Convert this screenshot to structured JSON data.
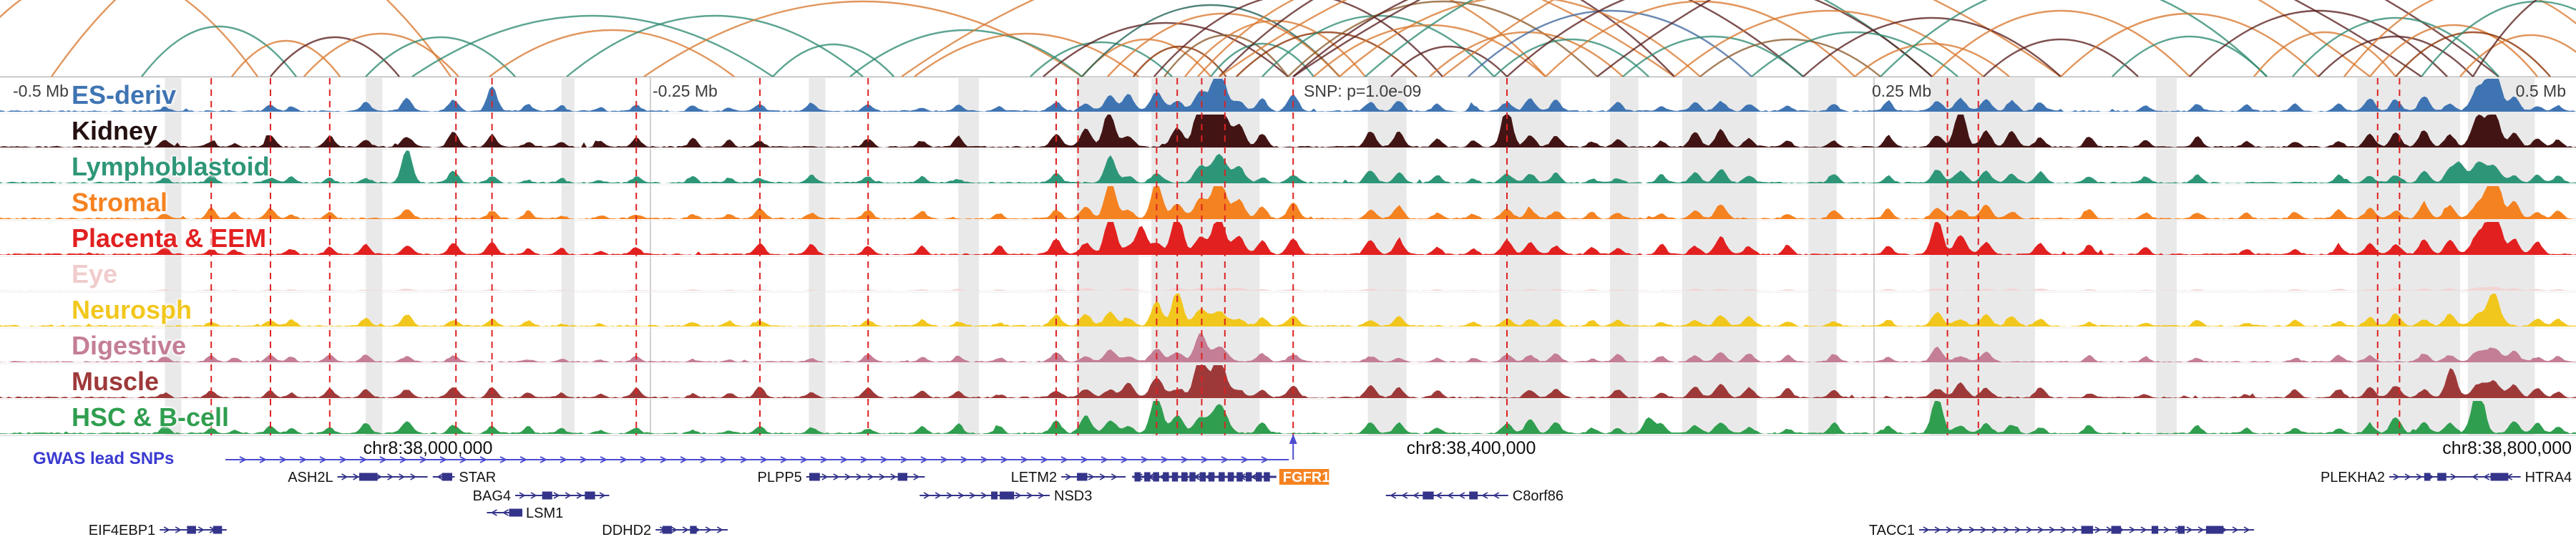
{
  "ruler": {
    "minus_half": "-0.5 Mb",
    "minus_quarter": "-0.25 Mb",
    "snp": "SNP: p=1.0e-09",
    "plus_quarter": "0.25 Mb",
    "plus_half": "0.5 Mb"
  },
  "coordinates": {
    "left": "chr8:38,000,000",
    "center": "chr8:38,400,000",
    "right": "chr8:38,800,000"
  },
  "gwas": {
    "label": "GWAS lead SNPs"
  },
  "chart_data": {
    "type": "area",
    "subtype": "genome-signal-tracks-with-interaction-arcs",
    "region": "chr8:37,900,000-38,900,000",
    "snp_x": 0.502,
    "snp_label": "SNP: p=1.0e-09",
    "gene_color": "#34348a",
    "gene_label_color": "#141414",
    "highlight_gene_bg": "#f58220",
    "gwas_line_color": "#4d4dd0",
    "red_line_color": "#dd2222",
    "tracks": [
      {
        "name": "ES-deriv",
        "color": "#3f74b3",
        "label_color": "#3f74b3",
        "scale": 0.85,
        "emph": [
          [
            0.473,
            0.8
          ],
          [
            0.968,
            1.0
          ],
          [
            0.191,
            0.45
          ]
        ]
      },
      {
        "name": "Kidney",
        "color": "#431414",
        "label_color": "#241010",
        "scale": 1.0,
        "emph": [
          [
            0.473,
            1.0
          ],
          [
            0.466,
            0.75
          ],
          [
            0.585,
            0.65
          ],
          [
            0.761,
            0.7
          ],
          [
            0.968,
            0.75
          ],
          [
            0.43,
            0.5
          ]
        ]
      },
      {
        "name": "Lymphoblastoid",
        "color": "#2e9678",
        "label_color": "#2e9678",
        "scale": 0.7,
        "emph": [
          [
            0.158,
            0.7
          ],
          [
            0.431,
            0.55
          ],
          [
            0.955,
            0.55
          ]
        ]
      },
      {
        "name": "Stromal",
        "color": "#f58220",
        "label_color": "#f58220",
        "scale": 0.85,
        "emph": [
          [
            0.431,
            0.9
          ],
          [
            0.449,
            0.75
          ],
          [
            0.473,
            0.65
          ],
          [
            0.968,
            0.95
          ]
        ]
      },
      {
        "name": "Placenta & EEM",
        "color": "#e22020",
        "label_color": "#e22020",
        "scale": 0.9,
        "emph": [
          [
            0.431,
            0.9
          ],
          [
            0.443,
            0.85
          ],
          [
            0.457,
            0.8
          ],
          [
            0.473,
            0.75
          ],
          [
            0.968,
            1.0
          ],
          [
            0.752,
            0.55
          ]
        ]
      },
      {
        "name": "Eye",
        "color": "#f3d5d5",
        "label_color": "#f0cccc",
        "scale": 0.12,
        "emph": []
      },
      {
        "name": "Neurosph",
        "color": "#f2c71d",
        "label_color": "#f2c71d",
        "scale": 0.65,
        "emph": [
          [
            0.449,
            0.75
          ],
          [
            0.457,
            0.65
          ],
          [
            0.968,
            0.55
          ]
        ]
      },
      {
        "name": "Digestive",
        "color": "#c47e95",
        "label_color": "#c47e95",
        "scale": 0.55,
        "emph": [
          [
            0.466,
            0.55
          ],
          [
            0.752,
            0.45
          ]
        ]
      },
      {
        "name": "Muscle",
        "color": "#9e3939",
        "label_color": "#9e3939",
        "scale": 0.75,
        "emph": [
          [
            0.466,
            0.8
          ],
          [
            0.473,
            0.65
          ],
          [
            0.952,
            0.55
          ]
        ]
      },
      {
        "name": "HSC & B-cell",
        "color": "#2f9e4f",
        "label_color": "#2f9e4f",
        "scale": 0.8,
        "emph": [
          [
            0.962,
            1.0
          ],
          [
            0.752,
            0.65
          ],
          [
            0.64,
            0.5
          ],
          [
            0.449,
            0.55
          ]
        ]
      }
    ],
    "peaks": [
      [
        0.064,
        0.22
      ],
      [
        0.082,
        0.28
      ],
      [
        0.091,
        0.18
      ],
      [
        0.105,
        0.32
      ],
      [
        0.113,
        0.22
      ],
      [
        0.128,
        0.28
      ],
      [
        0.142,
        0.32
      ],
      [
        0.158,
        0.42
      ],
      [
        0.176,
        0.38
      ],
      [
        0.191,
        0.33
      ],
      [
        0.205,
        0.2
      ],
      [
        0.218,
        0.18
      ],
      [
        0.233,
        0.15
      ],
      [
        0.247,
        0.28
      ],
      [
        0.269,
        0.22
      ],
      [
        0.283,
        0.18
      ],
      [
        0.295,
        0.32
      ],
      [
        0.315,
        0.27
      ],
      [
        0.337,
        0.32
      ],
      [
        0.358,
        0.22
      ],
      [
        0.372,
        0.28
      ],
      [
        0.388,
        0.22
      ],
      [
        0.41,
        0.42
      ],
      [
        0.4215,
        0.5
      ],
      [
        0.431,
        0.55
      ],
      [
        0.438,
        0.46
      ],
      [
        0.449,
        0.6
      ],
      [
        0.457,
        0.55
      ],
      [
        0.466,
        0.65
      ],
      [
        0.4733,
        0.92
      ],
      [
        0.481,
        0.55
      ],
      [
        0.49,
        0.38
      ],
      [
        0.502,
        0.45
      ],
      [
        0.532,
        0.42
      ],
      [
        0.543,
        0.36
      ],
      [
        0.558,
        0.27
      ],
      [
        0.572,
        0.2
      ],
      [
        0.585,
        0.46
      ],
      [
        0.594,
        0.4
      ],
      [
        0.604,
        0.36
      ],
      [
        0.618,
        0.22
      ],
      [
        0.628,
        0.32
      ],
      [
        0.645,
        0.27
      ],
      [
        0.658,
        0.4
      ],
      [
        0.668,
        0.45
      ],
      [
        0.679,
        0.36
      ],
      [
        0.694,
        0.27
      ],
      [
        0.712,
        0.32
      ],
      [
        0.733,
        0.27
      ],
      [
        0.752,
        0.5
      ],
      [
        0.761,
        0.55
      ],
      [
        0.771,
        0.45
      ],
      [
        0.781,
        0.4
      ],
      [
        0.792,
        0.36
      ],
      [
        0.811,
        0.27
      ],
      [
        0.833,
        0.22
      ],
      [
        0.853,
        0.27
      ],
      [
        0.872,
        0.22
      ],
      [
        0.891,
        0.27
      ],
      [
        0.908,
        0.32
      ],
      [
        0.92,
        0.4
      ],
      [
        0.93,
        0.45
      ],
      [
        0.941,
        0.4
      ],
      [
        0.951,
        0.45
      ],
      [
        0.962,
        0.7
      ],
      [
        0.968,
        0.8
      ],
      [
        0.976,
        0.45
      ],
      [
        0.985,
        0.36
      ],
      [
        0.993,
        0.3
      ]
    ],
    "red_lines": [
      0.082,
      0.105,
      0.128,
      0.177,
      0.191,
      0.247,
      0.295,
      0.337,
      0.41,
      0.4185,
      0.449,
      0.457,
      0.4665,
      0.4755,
      0.502,
      0.585,
      0.756,
      0.768,
      0.923,
      0.9315
    ],
    "gridlines": [
      0.2525,
      0.7275
    ],
    "shaded_regions": [
      [
        0.418,
        0.024
      ],
      [
        0.447,
        0.042
      ],
      [
        0.531,
        0.015
      ],
      [
        0.582,
        0.024
      ],
      [
        0.653,
        0.029
      ],
      [
        0.749,
        0.041
      ],
      [
        0.915,
        0.04
      ],
      [
        0.958,
        0.026
      ],
      [
        0.372,
        0.008
      ],
      [
        0.142,
        0.0064
      ],
      [
        0.064,
        0.0064
      ],
      [
        0.625,
        0.011
      ],
      [
        0.702,
        0.011
      ],
      [
        0.837,
        0.008
      ],
      [
        0.314,
        0.0064
      ],
      [
        0.218,
        0.005
      ]
    ],
    "arc_colors": [
      "#d9782f",
      "#2e8b72",
      "#5a1f1f",
      "#8a5a2b",
      "#41699e",
      "#8b2f00",
      "#1f6054"
    ],
    "arcs": [
      [
        -0.02,
        0.1,
        150,
        0
      ],
      [
        0.02,
        0.175,
        200,
        0
      ],
      [
        0.055,
        0.115,
        70,
        1
      ],
      [
        0.09,
        0.132,
        50,
        0
      ],
      [
        0.105,
        0.155,
        55,
        2
      ],
      [
        0.118,
        0.178,
        60,
        0
      ],
      [
        0.142,
        0.2,
        55,
        1
      ],
      [
        0.16,
        0.3,
        85,
        1
      ],
      [
        0.19,
        0.285,
        65,
        0
      ],
      [
        0.22,
        0.335,
        85,
        1
      ],
      [
        0.25,
        0.42,
        105,
        0
      ],
      [
        0.3,
        0.347,
        45,
        1
      ],
      [
        0.33,
        0.42,
        65,
        1
      ],
      [
        0.355,
        0.442,
        60,
        0
      ],
      [
        0.35,
        0.65,
        190,
        0
      ],
      [
        0.4,
        0.455,
        48,
        1
      ],
      [
        0.405,
        0.5,
        75,
        2
      ],
      [
        0.42,
        0.47,
        52,
        0
      ],
      [
        0.42,
        0.52,
        100,
        6
      ],
      [
        0.43,
        0.52,
        88,
        0
      ],
      [
        0.44,
        0.476,
        42,
        5
      ],
      [
        0.448,
        0.56,
        115,
        2
      ],
      [
        0.452,
        0.5,
        58,
        3
      ],
      [
        0.46,
        0.53,
        78,
        0
      ],
      [
        0.465,
        0.6,
        135,
        0
      ],
      [
        0.47,
        0.51,
        46,
        1
      ],
      [
        0.4733,
        0.65,
        165,
        2
      ],
      [
        0.4733,
        0.8,
        210,
        0
      ],
      [
        0.48,
        0.55,
        62,
        5
      ],
      [
        0.49,
        0.58,
        85,
        1
      ],
      [
        0.5,
        0.62,
        105,
        3
      ],
      [
        0.502,
        0.7,
        155,
        2
      ],
      [
        0.502,
        0.94,
        270,
        2
      ],
      [
        0.51,
        0.6,
        72,
        0
      ],
      [
        0.52,
        0.66,
        112,
        0
      ],
      [
        0.53,
        0.75,
        175,
        1
      ],
      [
        0.54,
        0.585,
        42,
        2
      ],
      [
        0.555,
        0.63,
        62,
        0
      ],
      [
        0.56,
        0.92,
        255,
        0
      ],
      [
        0.57,
        0.68,
        92,
        4
      ],
      [
        0.58,
        0.64,
        52,
        1
      ],
      [
        0.585,
        0.75,
        135,
        2
      ],
      [
        0.6,
        0.72,
        105,
        0
      ],
      [
        0.62,
        0.97,
        245,
        2
      ],
      [
        0.63,
        0.7,
        56,
        1
      ],
      [
        0.65,
        0.77,
        92,
        0
      ],
      [
        0.66,
        0.73,
        52,
        3
      ],
      [
        0.68,
        0.76,
        62,
        1
      ],
      [
        0.7,
        0.8,
        82,
        2
      ],
      [
        0.72,
        0.78,
        46,
        0
      ],
      [
        0.73,
        0.88,
        135,
        1
      ],
      [
        0.75,
        0.85,
        92,
        0
      ],
      [
        0.77,
        0.83,
        52,
        2
      ],
      [
        0.8,
        0.9,
        88,
        0
      ],
      [
        0.82,
        0.88,
        56,
        1
      ],
      [
        0.85,
        0.95,
        92,
        2
      ],
      [
        0.875,
        0.93,
        62,
        0
      ],
      [
        0.89,
        0.97,
        82,
        1
      ],
      [
        0.9,
        0.96,
        56,
        2
      ],
      [
        0.91,
        1.02,
        125,
        0
      ],
      [
        0.92,
        0.985,
        72,
        0
      ],
      [
        0.93,
        0.99,
        62,
        5
      ],
      [
        0.94,
        1.03,
        105,
        1
      ],
      [
        0.955,
        1.01,
        58,
        0
      ],
      [
        0.96,
        1.05,
        135,
        2
      ]
    ],
    "genes": [
      {
        "name": "ASH2L",
        "row": 0,
        "x1": 0.131,
        "x2": 0.166,
        "strand": "+",
        "side": "left"
      },
      {
        "name": "STAR",
        "row": 0,
        "x1": 0.168,
        "x2": 0.1765,
        "strand": "-",
        "side": "right"
      },
      {
        "name": "PLPP5",
        "row": 0,
        "x1": 0.313,
        "x2": 0.359,
        "strand": "+",
        "side": "left"
      },
      {
        "name": "LETM2",
        "row": 0,
        "x1": 0.412,
        "x2": 0.437,
        "strand": "+",
        "side": "left"
      },
      {
        "name": "FGFR1",
        "row": 0,
        "x1": 0.4395,
        "x2": 0.4955,
        "strand": "-",
        "side": "right",
        "hl": true,
        "dense": true
      },
      {
        "name": "PLEKHA2",
        "row": 0,
        "x1": 0.9275,
        "x2": 0.958,
        "strand": "+",
        "side": "left"
      },
      {
        "name": "HTRA4",
        "row": 0,
        "x1": 0.958,
        "x2": 0.9785,
        "strand": "-",
        "side": "right"
      },
      {
        "name": "BAG4",
        "row": 1,
        "x1": 0.2,
        "x2": 0.2365,
        "strand": "+",
        "side": "left"
      },
      {
        "name": "NSD3",
        "row": 1,
        "x1": 0.357,
        "x2": 0.4075,
        "strand": "+",
        "side": "right"
      },
      {
        "name": "C8orf86",
        "row": 1,
        "x1": 0.538,
        "x2": 0.5855,
        "strand": "-",
        "side": "right"
      },
      {
        "name": "LSM1",
        "row": 2,
        "x1": 0.189,
        "x2": 0.2025,
        "strand": "-",
        "side": "right"
      },
      {
        "name": "EIF4EBP1",
        "row": 3,
        "x1": 0.062,
        "x2": 0.088,
        "strand": "+",
        "side": "left"
      },
      {
        "name": "DDHD2",
        "row": 3,
        "x1": 0.2545,
        "x2": 0.2825,
        "strand": "+",
        "side": "left"
      },
      {
        "name": "TACC1",
        "row": 3,
        "x1": 0.745,
        "x2": 0.875,
        "strand": "+",
        "side": "left"
      }
    ]
  }
}
